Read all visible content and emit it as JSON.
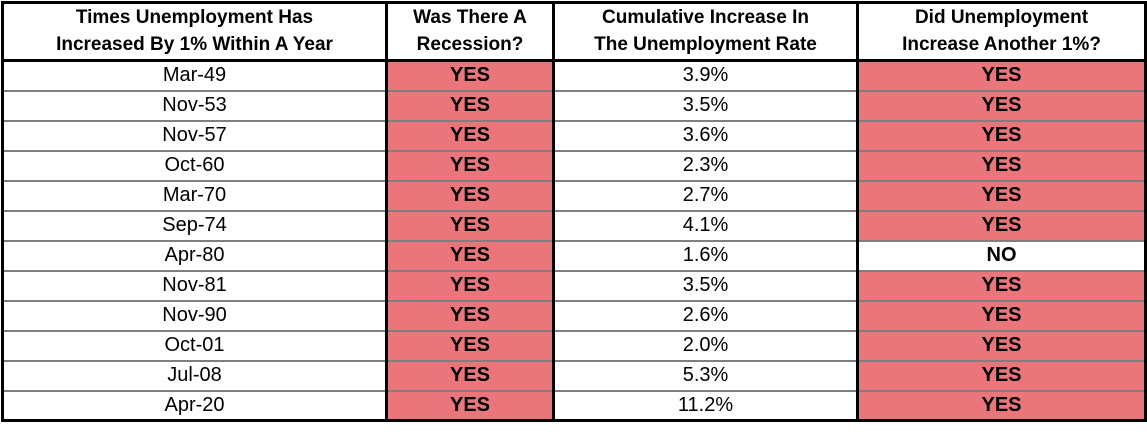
{
  "colors": {
    "highlight": "#EA757B",
    "border_dark": "#000000",
    "row_divider": "#7F7F7F",
    "text": "#000000",
    "background": "#FFFFFF"
  },
  "table": {
    "headers": [
      {
        "lines": [
          "Times Unemployment Has",
          "Increased By 1% Within A Year"
        ]
      },
      {
        "lines": [
          "Was There A",
          "Recession?"
        ]
      },
      {
        "lines": [
          "Cumulative Increase In",
          "The Unemployment Rate"
        ]
      },
      {
        "lines": [
          "Did Unemployment",
          "Increase Another 1%?"
        ]
      }
    ],
    "rows": [
      {
        "date": "Mar-49",
        "recession": "YES",
        "cumulative": "3.9%",
        "another": "YES"
      },
      {
        "date": "Nov-53",
        "recession": "YES",
        "cumulative": "3.5%",
        "another": "YES"
      },
      {
        "date": "Nov-57",
        "recession": "YES",
        "cumulative": "3.6%",
        "another": "YES"
      },
      {
        "date": "Oct-60",
        "recession": "YES",
        "cumulative": "2.3%",
        "another": "YES"
      },
      {
        "date": "Mar-70",
        "recession": "YES",
        "cumulative": "2.7%",
        "another": "YES"
      },
      {
        "date": "Sep-74",
        "recession": "YES",
        "cumulative": "4.1%",
        "another": "YES"
      },
      {
        "date": "Apr-80",
        "recession": "YES",
        "cumulative": "1.6%",
        "another": "NO"
      },
      {
        "date": "Nov-81",
        "recession": "YES",
        "cumulative": "3.5%",
        "another": "YES"
      },
      {
        "date": "Nov-90",
        "recession": "YES",
        "cumulative": "2.6%",
        "another": "YES"
      },
      {
        "date": "Oct-01",
        "recession": "YES",
        "cumulative": "2.0%",
        "another": "YES"
      },
      {
        "date": "Jul-08",
        "recession": "YES",
        "cumulative": "5.3%",
        "another": "YES"
      },
      {
        "date": "Apr-20",
        "recession": "YES",
        "cumulative": "11.2%",
        "another": "YES"
      }
    ]
  },
  "chart_data": {
    "type": "table",
    "title": "",
    "columns": [
      "Times Unemployment Has Increased By 1% Within A Year",
      "Was There A Recession?",
      "Cumulative Increase In The Unemployment Rate",
      "Did Unemployment Increase Another 1%?"
    ],
    "dates": [
      "Mar-49",
      "Nov-53",
      "Nov-57",
      "Oct-60",
      "Mar-70",
      "Sep-74",
      "Apr-80",
      "Nov-81",
      "Nov-90",
      "Oct-01",
      "Jul-08",
      "Apr-20"
    ],
    "was_there_a_recession": [
      "YES",
      "YES",
      "YES",
      "YES",
      "YES",
      "YES",
      "YES",
      "YES",
      "YES",
      "YES",
      "YES",
      "YES"
    ],
    "cumulative_increase_pct": [
      3.9,
      3.5,
      3.6,
      2.3,
      2.7,
      4.1,
      1.6,
      3.5,
      2.6,
      2.0,
      5.3,
      11.2
    ],
    "did_unemployment_increase_another_1pct": [
      "YES",
      "YES",
      "YES",
      "YES",
      "YES",
      "YES",
      "NO",
      "YES",
      "YES",
      "YES",
      "YES",
      "YES"
    ],
    "layout": {
      "highlight_color_for_yes": "#EA757B",
      "grid": true,
      "header_rows": 1
    }
  }
}
